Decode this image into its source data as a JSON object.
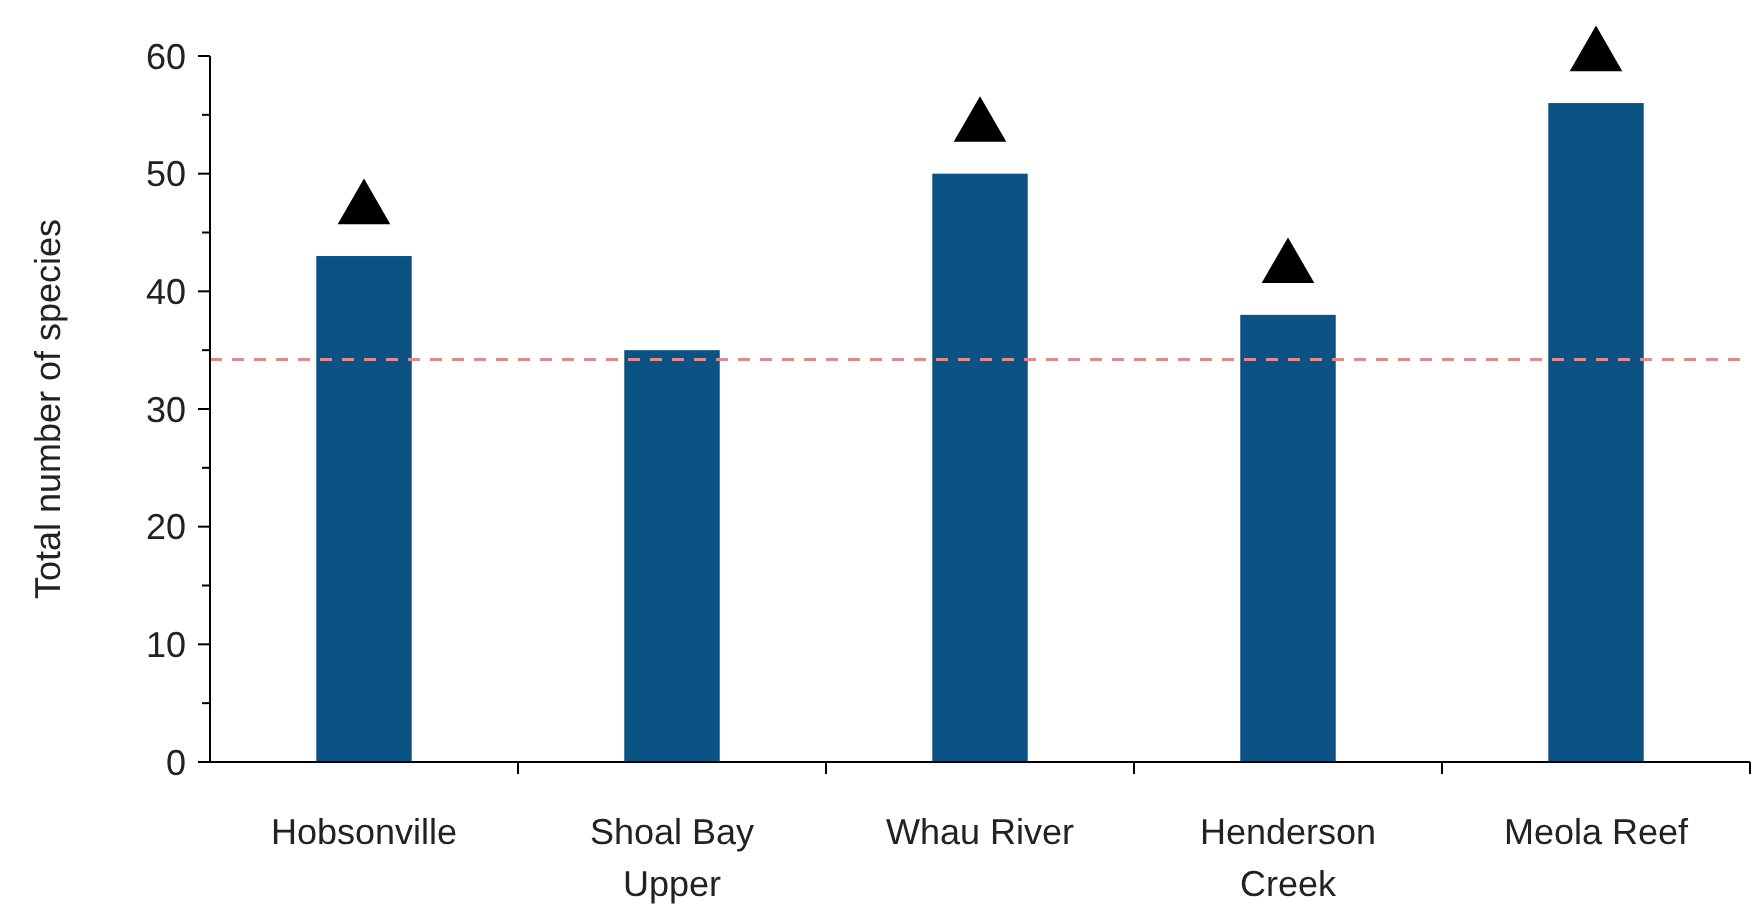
{
  "chart_data": {
    "type": "bar",
    "ylabel": "Total number of species",
    "categories": [
      "Hobsonville",
      "Shoal Bay Upper",
      "Whau River",
      "Henderson Creek",
      "Meola Reef"
    ],
    "series": [
      {
        "color": "#0b5384",
        "values": [
          43,
          35,
          50,
          38,
          56
        ]
      },
      {
        "type": "scatter",
        "color": "#000000",
        "marker": "triangle",
        "x": [
          "Hobsonville",
          "Whau River",
          "Henderson Creek",
          "Meola Reef"
        ],
        "values": [
          47,
          54,
          42,
          60
        ]
      }
    ],
    "ylim": [
      0,
      60
    ],
    "yticks": [
      0,
      {
        "value": 5,
        "label": null
      },
      10,
      {
        "value": 15,
        "label": null
      },
      20,
      {
        "value": 25,
        "label": null
      },
      30,
      {
        "value": 35,
        "label": null
      },
      40,
      {
        "value": 45,
        "label": null
      },
      50,
      {
        "value": 55,
        "label": null
      },
      60
    ],
    "ref_lines": [
      {
        "axis": "y",
        "value": 34.2,
        "color": "#e08a8a",
        "line_style": "dashed"
      }
    ],
    "grid": false
  }
}
